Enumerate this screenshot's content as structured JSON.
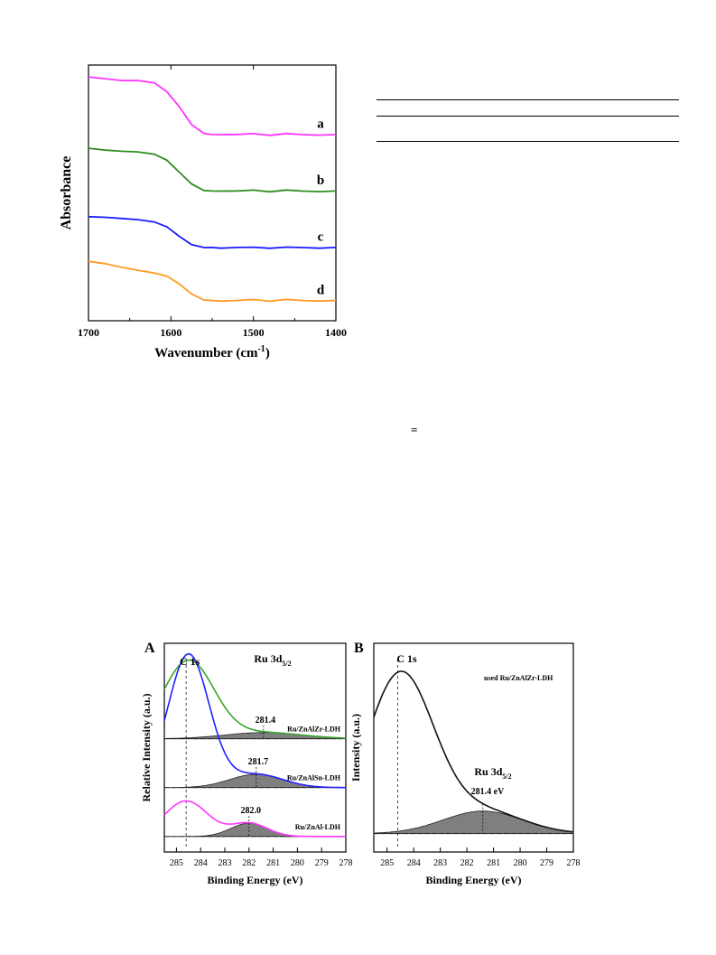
{
  "table_rules": {
    "count": 3
  },
  "equals_sign": "=",
  "chart_data": [
    {
      "type": "line",
      "title": "",
      "xlabel": "Wavenumber (cm-1)",
      "xlabel_parts": {
        "base": "Wavenumber (cm",
        "sup": "-1",
        "close": ")"
      },
      "ylabel": "Absorbance",
      "xlim": [
        1700,
        1400
      ],
      "x_ticks": [
        1700,
        1600,
        1500,
        1400
      ],
      "y_ticks_shown": false,
      "series": [
        {
          "name": "a",
          "color": "#ff33ff",
          "offset": 3.1,
          "x": [
            1700,
            1680,
            1660,
            1640,
            1620,
            1605,
            1590,
            1575,
            1560,
            1550,
            1540,
            1520,
            1500,
            1480,
            1460,
            1440,
            1420,
            1400
          ],
          "y": [
            1.0,
            0.97,
            0.94,
            0.94,
            0.9,
            0.75,
            0.5,
            0.2,
            0.05,
            0.02,
            0.04,
            0.03,
            0.04,
            0.03,
            0.04,
            0.03,
            0.03,
            0.02
          ]
        },
        {
          "name": "b",
          "color": "#2e8b1f",
          "offset": 2.15,
          "x": [
            1700,
            1680,
            1660,
            1640,
            1620,
            1605,
            1590,
            1575,
            1560,
            1550,
            1540,
            1520,
            1500,
            1480,
            1460,
            1440,
            1420,
            1400
          ],
          "y": [
            0.75,
            0.72,
            0.7,
            0.69,
            0.65,
            0.55,
            0.35,
            0.15,
            0.04,
            0.02,
            0.04,
            0.03,
            0.04,
            0.03,
            0.04,
            0.03,
            0.03,
            0.02
          ]
        },
        {
          "name": "c",
          "color": "#1a1aff",
          "offset": 1.2,
          "x": [
            1700,
            1680,
            1660,
            1640,
            1620,
            1605,
            1590,
            1575,
            1560,
            1550,
            1540,
            1520,
            1500,
            1480,
            1460,
            1440,
            1420,
            1400
          ],
          "y": [
            0.55,
            0.54,
            0.52,
            0.5,
            0.46,
            0.38,
            0.22,
            0.08,
            0.03,
            0.02,
            0.03,
            0.03,
            0.03,
            0.03,
            0.03,
            0.03,
            0.03,
            0.02
          ]
        },
        {
          "name": "d",
          "color": "#ff9a1f",
          "offset": 0.3,
          "x": [
            1700,
            1680,
            1660,
            1640,
            1620,
            1605,
            1590,
            1575,
            1560,
            1550,
            1540,
            1520,
            1500,
            1480,
            1460,
            1440,
            1420,
            1400
          ],
          "y": [
            0.7,
            0.66,
            0.6,
            0.55,
            0.5,
            0.45,
            0.32,
            0.15,
            0.05,
            0.03,
            0.04,
            0.04,
            0.05,
            0.04,
            0.05,
            0.04,
            0.04,
            0.03
          ]
        }
      ]
    },
    {
      "type": "line",
      "panel_label": "A",
      "title": "",
      "xlabel": "Binding Energy (eV)",
      "ylabel": "Relative Intensity (a.u.)",
      "xlim": [
        285.5,
        278
      ],
      "x_ticks": [
        285,
        284,
        283,
        282,
        281,
        280,
        279,
        278
      ],
      "peak_ref": {
        "label": "C 1s",
        "x": 284.6
      },
      "ru_label": {
        "base": "Ru 3d",
        "sub": "5/2"
      },
      "series": [
        {
          "name": "Ru/ZnAlZr-LDH",
          "color": "#3aa52e",
          "peak": 284.5,
          "height": 1.75,
          "width": 1.05,
          "base": 2.55,
          "ru_peak": 281.4,
          "ru_height": 0.14,
          "ru_width": 1.6,
          "ru_label": "281.4"
        },
        {
          "name": "Ru/ZnAlSn-LDH",
          "color": "#2020ff",
          "peak": 284.5,
          "height": 3.0,
          "width": 0.85,
          "base": 1.45,
          "ru_peak": 281.7,
          "ru_height": 0.3,
          "ru_width": 1.1,
          "ru_label": "281.7"
        },
        {
          "name": "Ru/ZnAl-LDH",
          "color": "#ff33ff",
          "peak": 284.6,
          "height": 0.8,
          "width": 0.9,
          "base": 0.35,
          "ru_peak": 282.0,
          "ru_height": 0.3,
          "ru_width": 0.75,
          "ru_label": "282.0"
        }
      ]
    },
    {
      "type": "line",
      "panel_label": "B",
      "title": "",
      "xlabel": "Binding Energy (eV)",
      "ylabel": "Intensity (a.u.)",
      "xlim": [
        285.5,
        278
      ],
      "x_ticks": [
        285,
        284,
        283,
        282,
        281,
        280,
        279,
        278
      ],
      "peak_ref": {
        "label": "C 1s",
        "x": 284.6
      },
      "legend_text": "used Ru/ZnAlZr-LDH",
      "ru_label": {
        "base": "Ru 3d",
        "sub": "5/2"
      },
      "ru_peak_label": "281.4 eV",
      "series": [
        {
          "name": "used Ru/ZnAlZr-LDH",
          "color": "#111111",
          "peak": 284.5,
          "height": 3.9,
          "width": 1.25,
          "base": 0.45,
          "ru_peak": 281.4,
          "ru_height": 0.55,
          "ru_width": 1.5
        }
      ]
    }
  ]
}
